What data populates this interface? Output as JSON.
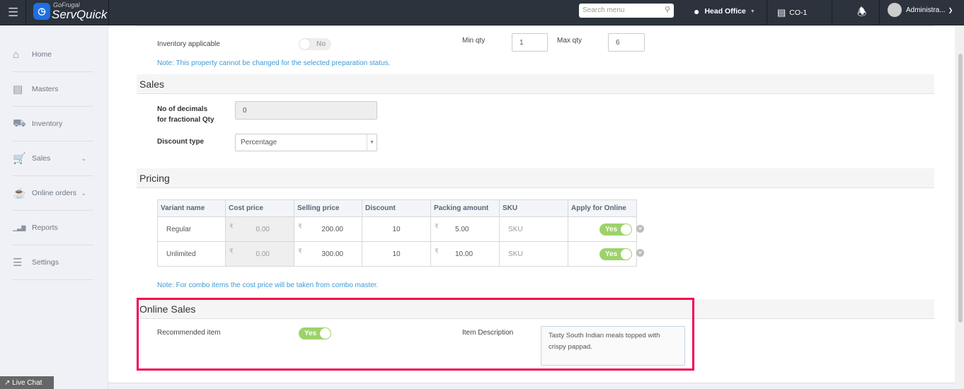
{
  "header": {
    "logo_top": "GoFrugal",
    "logo_main": "ServQuick",
    "search_placeholder": "Search menu",
    "location": "Head Office",
    "counter": "CO-1",
    "user": "Administra..."
  },
  "sidebar": {
    "items": [
      {
        "label": "Home",
        "icon": "home-icon"
      },
      {
        "label": "Masters",
        "icon": "masters-icon"
      },
      {
        "label": "Inventory",
        "icon": "inventory-icon"
      },
      {
        "label": "Sales",
        "icon": "cart-icon",
        "chevron": true
      },
      {
        "label": "Online orders",
        "icon": "online-orders-icon",
        "chevron": true
      },
      {
        "label": "Reports",
        "icon": "reports-icon"
      },
      {
        "label": "Settings",
        "icon": "settings-icon"
      }
    ],
    "live_chat": "Live Chat"
  },
  "inventory": {
    "label": "Inventory applicable",
    "toggle": "No",
    "min_label": "Min qty",
    "min_value": "1",
    "max_label": "Max qty",
    "max_value": "6",
    "note": "Note: This property cannot be changed for the selected preparation status."
  },
  "sales": {
    "title": "Sales",
    "decimals_label_1": "No of decimals",
    "decimals_label_2": "for fractional Qty",
    "decimals_value": "0",
    "discount_label": "Discount type",
    "discount_value": "Percentage"
  },
  "pricing": {
    "title": "Pricing",
    "currency": "₹",
    "columns": [
      "Variant name",
      "Cost price",
      "Selling price",
      "Discount",
      "Packing amount",
      "SKU",
      "Apply for Online"
    ],
    "rows": [
      {
        "variant": "Regular",
        "cost": "0.00",
        "selling": "200.00",
        "discount": "10",
        "packing": "5.00",
        "sku": "SKU",
        "online": "Yes"
      },
      {
        "variant": "Unlimited",
        "cost": "0.00",
        "selling": "300.00",
        "discount": "10",
        "packing": "10.00",
        "sku": "SKU",
        "online": "Yes"
      }
    ],
    "note": "Note: For combo items the cost price will be taken from combo master."
  },
  "online_sales": {
    "title": "Online Sales",
    "recommended_label": "Recommended item",
    "recommended_toggle": "Yes",
    "description_label": "Item Description",
    "description_value": "Tasty South Indian meals topped with crispy pappad.",
    "highlight_color": "#f0094f"
  }
}
